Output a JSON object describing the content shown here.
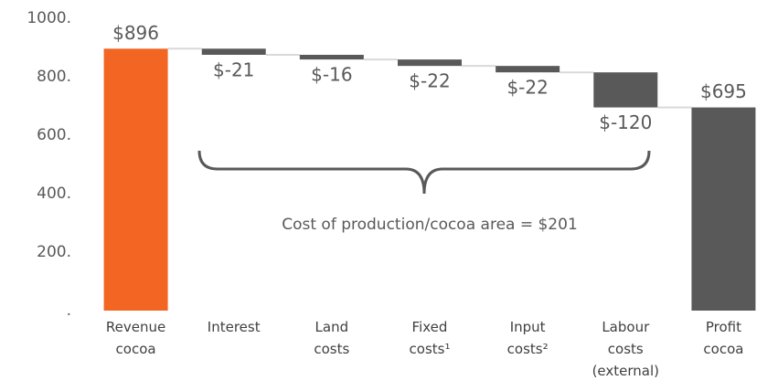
{
  "chart_data": {
    "type": "waterfall",
    "categories": [
      "Revenue cocoa",
      "Interest",
      "Land costs",
      "Fixed costs¹",
      "Input costs²",
      "Labour costs (external)",
      "Profit cocoa"
    ],
    "values": [
      896,
      -21,
      -16,
      -22,
      -22,
      -120,
      695
    ],
    "value_labels": [
      "$896",
      "$-21",
      "$-16",
      "$-22",
      "$-22",
      "$-120",
      "$695"
    ],
    "colors": [
      "#f26522",
      "#595959",
      "#595959",
      "#595959",
      "#595959",
      "#595959",
      "#595959"
    ],
    "ylim": [
      0,
      1000
    ],
    "yticks": [
      {
        "value": 0,
        "label": "."
      },
      {
        "value": 200,
        "label": "200."
      },
      {
        "value": 400,
        "label": "400."
      },
      {
        "value": 600,
        "label": "600."
      },
      {
        "value": 800,
        "label": "800."
      },
      {
        "value": 1000,
        "label": "1000."
      }
    ],
    "annotation": "Cost of production/cocoa area = $201",
    "grid": false
  }
}
